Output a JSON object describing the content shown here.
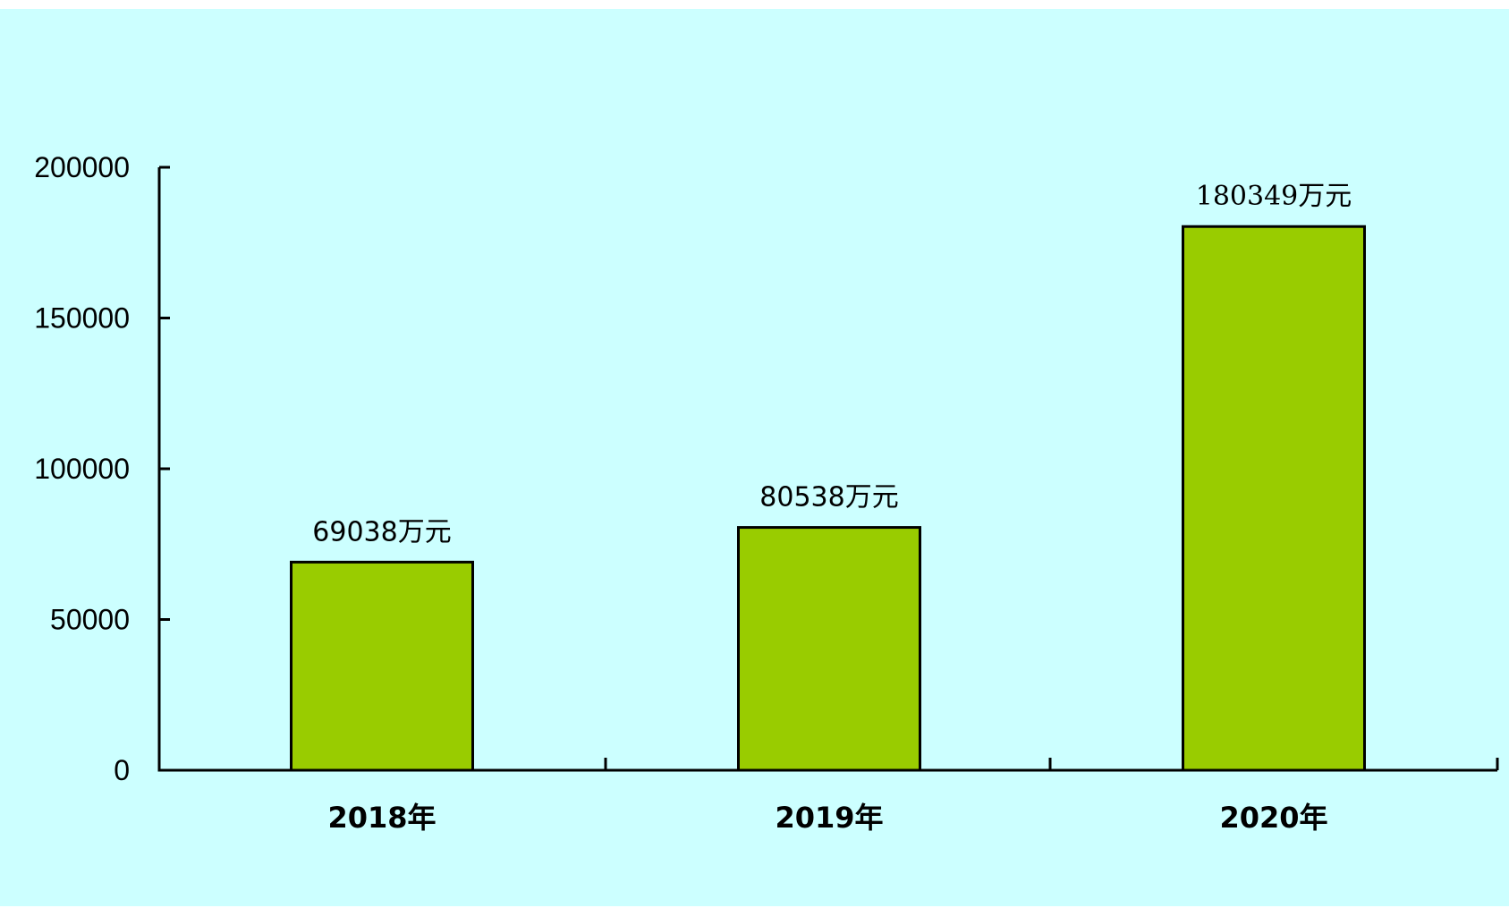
{
  "chart_data": {
    "type": "bar",
    "categories": [
      "2018年",
      "2019年",
      "2020年"
    ],
    "values": [
      69038,
      80538,
      180349
    ],
    "data_labels": [
      "69038万元",
      "80538万元",
      "180349万元"
    ],
    "y_ticks": [
      "0",
      "50000",
      "100000",
      "150000",
      "200000"
    ],
    "ylim": [
      0,
      200000
    ],
    "title": "",
    "xlabel": "",
    "ylabel": "",
    "grid": false,
    "legend": "none",
    "colors": {
      "background": "#ccffff",
      "bar_fill": "#99cc00",
      "bar_stroke": "#000000",
      "axis": "#000000"
    }
  }
}
